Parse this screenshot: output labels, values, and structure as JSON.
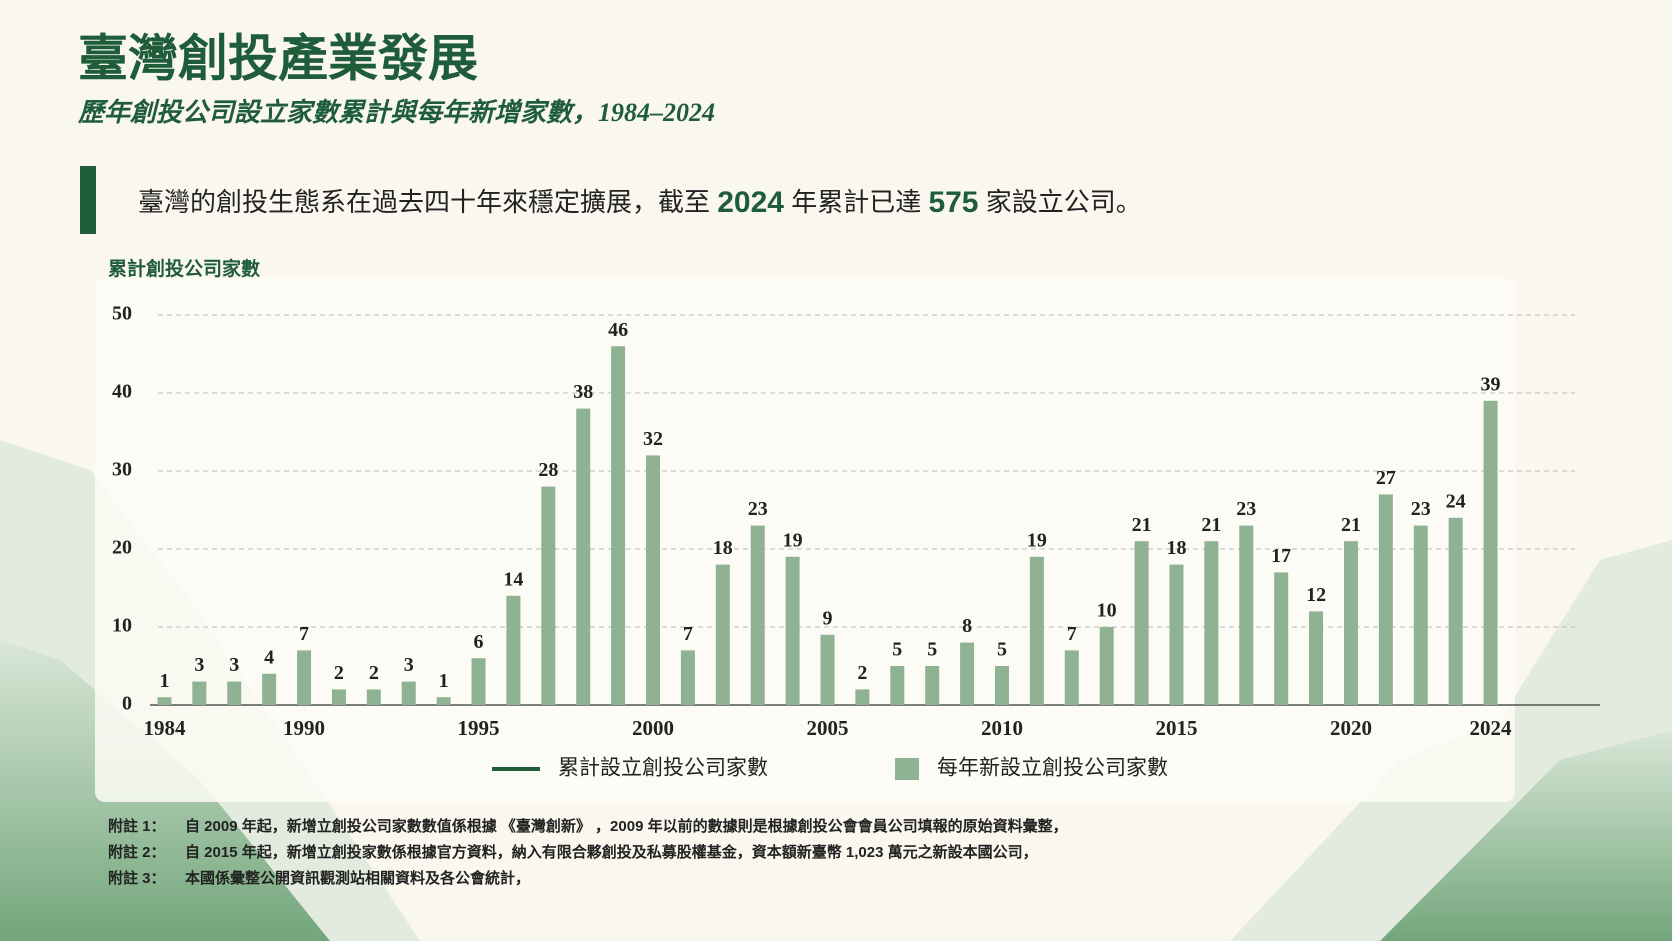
{
  "chart_data": {
    "type": "bar",
    "title": "臺灣創投產業發展",
    "subtitle": "歷年創投公司設立家數累計與每年新增家數，1984–2024",
    "highlight": [
      "臺灣的創投生態系在過去四十年來穩定擴展，截至 ",
      "2024",
      " 年累計已達 ",
      "575",
      " 家設立公司。"
    ],
    "y_label": "累計創投公司家數",
    "categories": [
      "1984",
      null,
      null,
      null,
      "1990",
      null,
      null,
      null,
      null,
      "1995",
      null,
      null,
      null,
      null,
      "2000",
      null,
      null,
      null,
      null,
      "2005",
      null,
      null,
      null,
      null,
      "2010",
      null,
      null,
      null,
      null,
      "2015",
      null,
      null,
      null,
      null,
      "2020",
      null,
      null,
      null,
      "2024"
    ],
    "values": [
      1,
      3,
      3,
      4,
      7,
      2,
      2,
      3,
      1,
      6,
      14,
      28,
      38,
      46,
      32,
      7,
      18,
      23,
      19,
      9,
      2,
      5,
      5,
      8,
      5,
      19,
      7,
      10,
      21,
      18,
      21,
      23,
      17,
      12,
      21,
      27,
      23,
      24,
      39
    ],
    "color": "#8fb293",
    "ylim": [
      0,
      50
    ],
    "yticks": [
      0,
      10,
      20,
      30,
      40,
      50
    ],
    "grid": true,
    "legend": [
      {
        "name": "累計設立創投公司家數",
        "color": "#1e5c3a",
        "style": "line"
      },
      {
        "name": "每年新設立創投公司家數",
        "color": "#8fb293",
        "style": "box"
      }
    ],
    "footnotes": [
      {
        "label": "附註 1：",
        "text": "自 2009 年起，新增立創投公司家數數值係根據 《臺灣創新》 ，2009 年以前的數據則是根據創投公會會員公司填報的原始資料彙整，"
      },
      {
        "label": "附註 2：",
        "text": "自 2015 年起，新增立創投家數係根據官方資料，納入有限合夥創投及私募股權基金，資本額新臺幣 1,023 萬元之新設本國公司，"
      },
      {
        "label": "附註 3：",
        "text": "本國係彙整公開資訊觀測站相關資料及各公會統計，"
      }
    ]
  }
}
